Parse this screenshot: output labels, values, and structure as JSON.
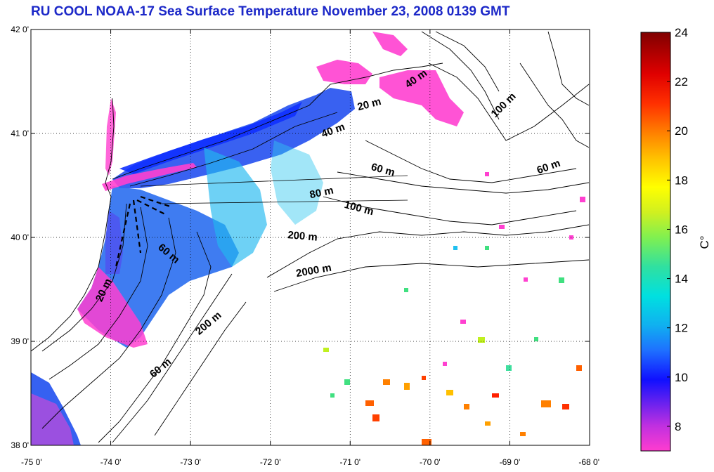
{
  "title": "RU COOL  NOAA-17 Sea Surface Temperature November 23, 2008 0139 GMT",
  "map": {
    "lon_range": [
      -75,
      -68
    ],
    "lat_range": [
      38,
      42
    ],
    "lon_ticks": [
      {
        "value": -75,
        "label": "-75 0'"
      },
      {
        "value": -74,
        "label": "-74 0'"
      },
      {
        "value": -73,
        "label": "-73 0'"
      },
      {
        "value": -72,
        "label": "-72 0'"
      },
      {
        "value": -71,
        "label": "-71 0'"
      },
      {
        "value": -70,
        "label": "-70 0'"
      },
      {
        "value": -69,
        "label": "-69 0'"
      },
      {
        "value": -68,
        "label": "-68 0'"
      }
    ],
    "lat_ticks": [
      {
        "value": 42,
        "label": "42 0'"
      },
      {
        "value": 41,
        "label": "41 0'"
      },
      {
        "value": 40,
        "label": "40 0'"
      },
      {
        "value": 39,
        "label": "39 0'"
      },
      {
        "value": 38,
        "label": "38 0'"
      }
    ],
    "grid": "dotted",
    "contour_labels": [
      {
        "text": "40 m",
        "lon": -70.15,
        "lat": 41.5,
        "angle": -35
      },
      {
        "text": "100 m",
        "lon": -69.05,
        "lat": 41.25,
        "angle": -45
      },
      {
        "text": "20 m",
        "lon": -70.75,
        "lat": 41.25,
        "angle": -15
      },
      {
        "text": "40 m",
        "lon": -71.2,
        "lat": 41.0,
        "angle": -20
      },
      {
        "text": "60 m",
        "lon": -70.6,
        "lat": 40.62,
        "angle": 15
      },
      {
        "text": "60 m",
        "lon": -68.5,
        "lat": 40.65,
        "angle": -20
      },
      {
        "text": "80 m",
        "lon": -71.35,
        "lat": 40.4,
        "angle": -12
      },
      {
        "text": "100 m",
        "lon": -70.9,
        "lat": 40.25,
        "angle": 15
      },
      {
        "text": "200 m",
        "lon": -71.6,
        "lat": 39.98,
        "angle": 5
      },
      {
        "text": "2000 m",
        "lon": -71.45,
        "lat": 39.65,
        "angle": -10
      },
      {
        "text": "60 m",
        "lon": -73.3,
        "lat": 39.82,
        "angle": 40
      },
      {
        "text": "20 m",
        "lon": -74.05,
        "lat": 39.48,
        "angle": -65
      },
      {
        "text": "200 m",
        "lon": -72.75,
        "lat": 39.15,
        "angle": -40
      },
      {
        "text": "60 m",
        "lon": -73.35,
        "lat": 38.72,
        "angle": -40
      }
    ]
  },
  "colorbar": {
    "min": 7,
    "max": 24,
    "ticks": [
      {
        "value": 8,
        "label": "8"
      },
      {
        "value": 10,
        "label": "10"
      },
      {
        "value": 12,
        "label": "12"
      },
      {
        "value": 14,
        "label": "14"
      },
      {
        "value": 16,
        "label": "16"
      },
      {
        "value": 18,
        "label": "18"
      },
      {
        "value": 20,
        "label": "20"
      },
      {
        "value": 22,
        "label": "22"
      },
      {
        "value": 24,
        "label": "24"
      }
    ],
    "unit_label": "C°",
    "colors": [
      "#ff3ccf",
      "#9020e8",
      "#1010ff",
      "#1e90ff",
      "#00e0e0",
      "#40e080",
      "#c0f020",
      "#ffff00",
      "#ffa000",
      "#ff2000",
      "#a00000",
      "#800000"
    ]
  }
}
